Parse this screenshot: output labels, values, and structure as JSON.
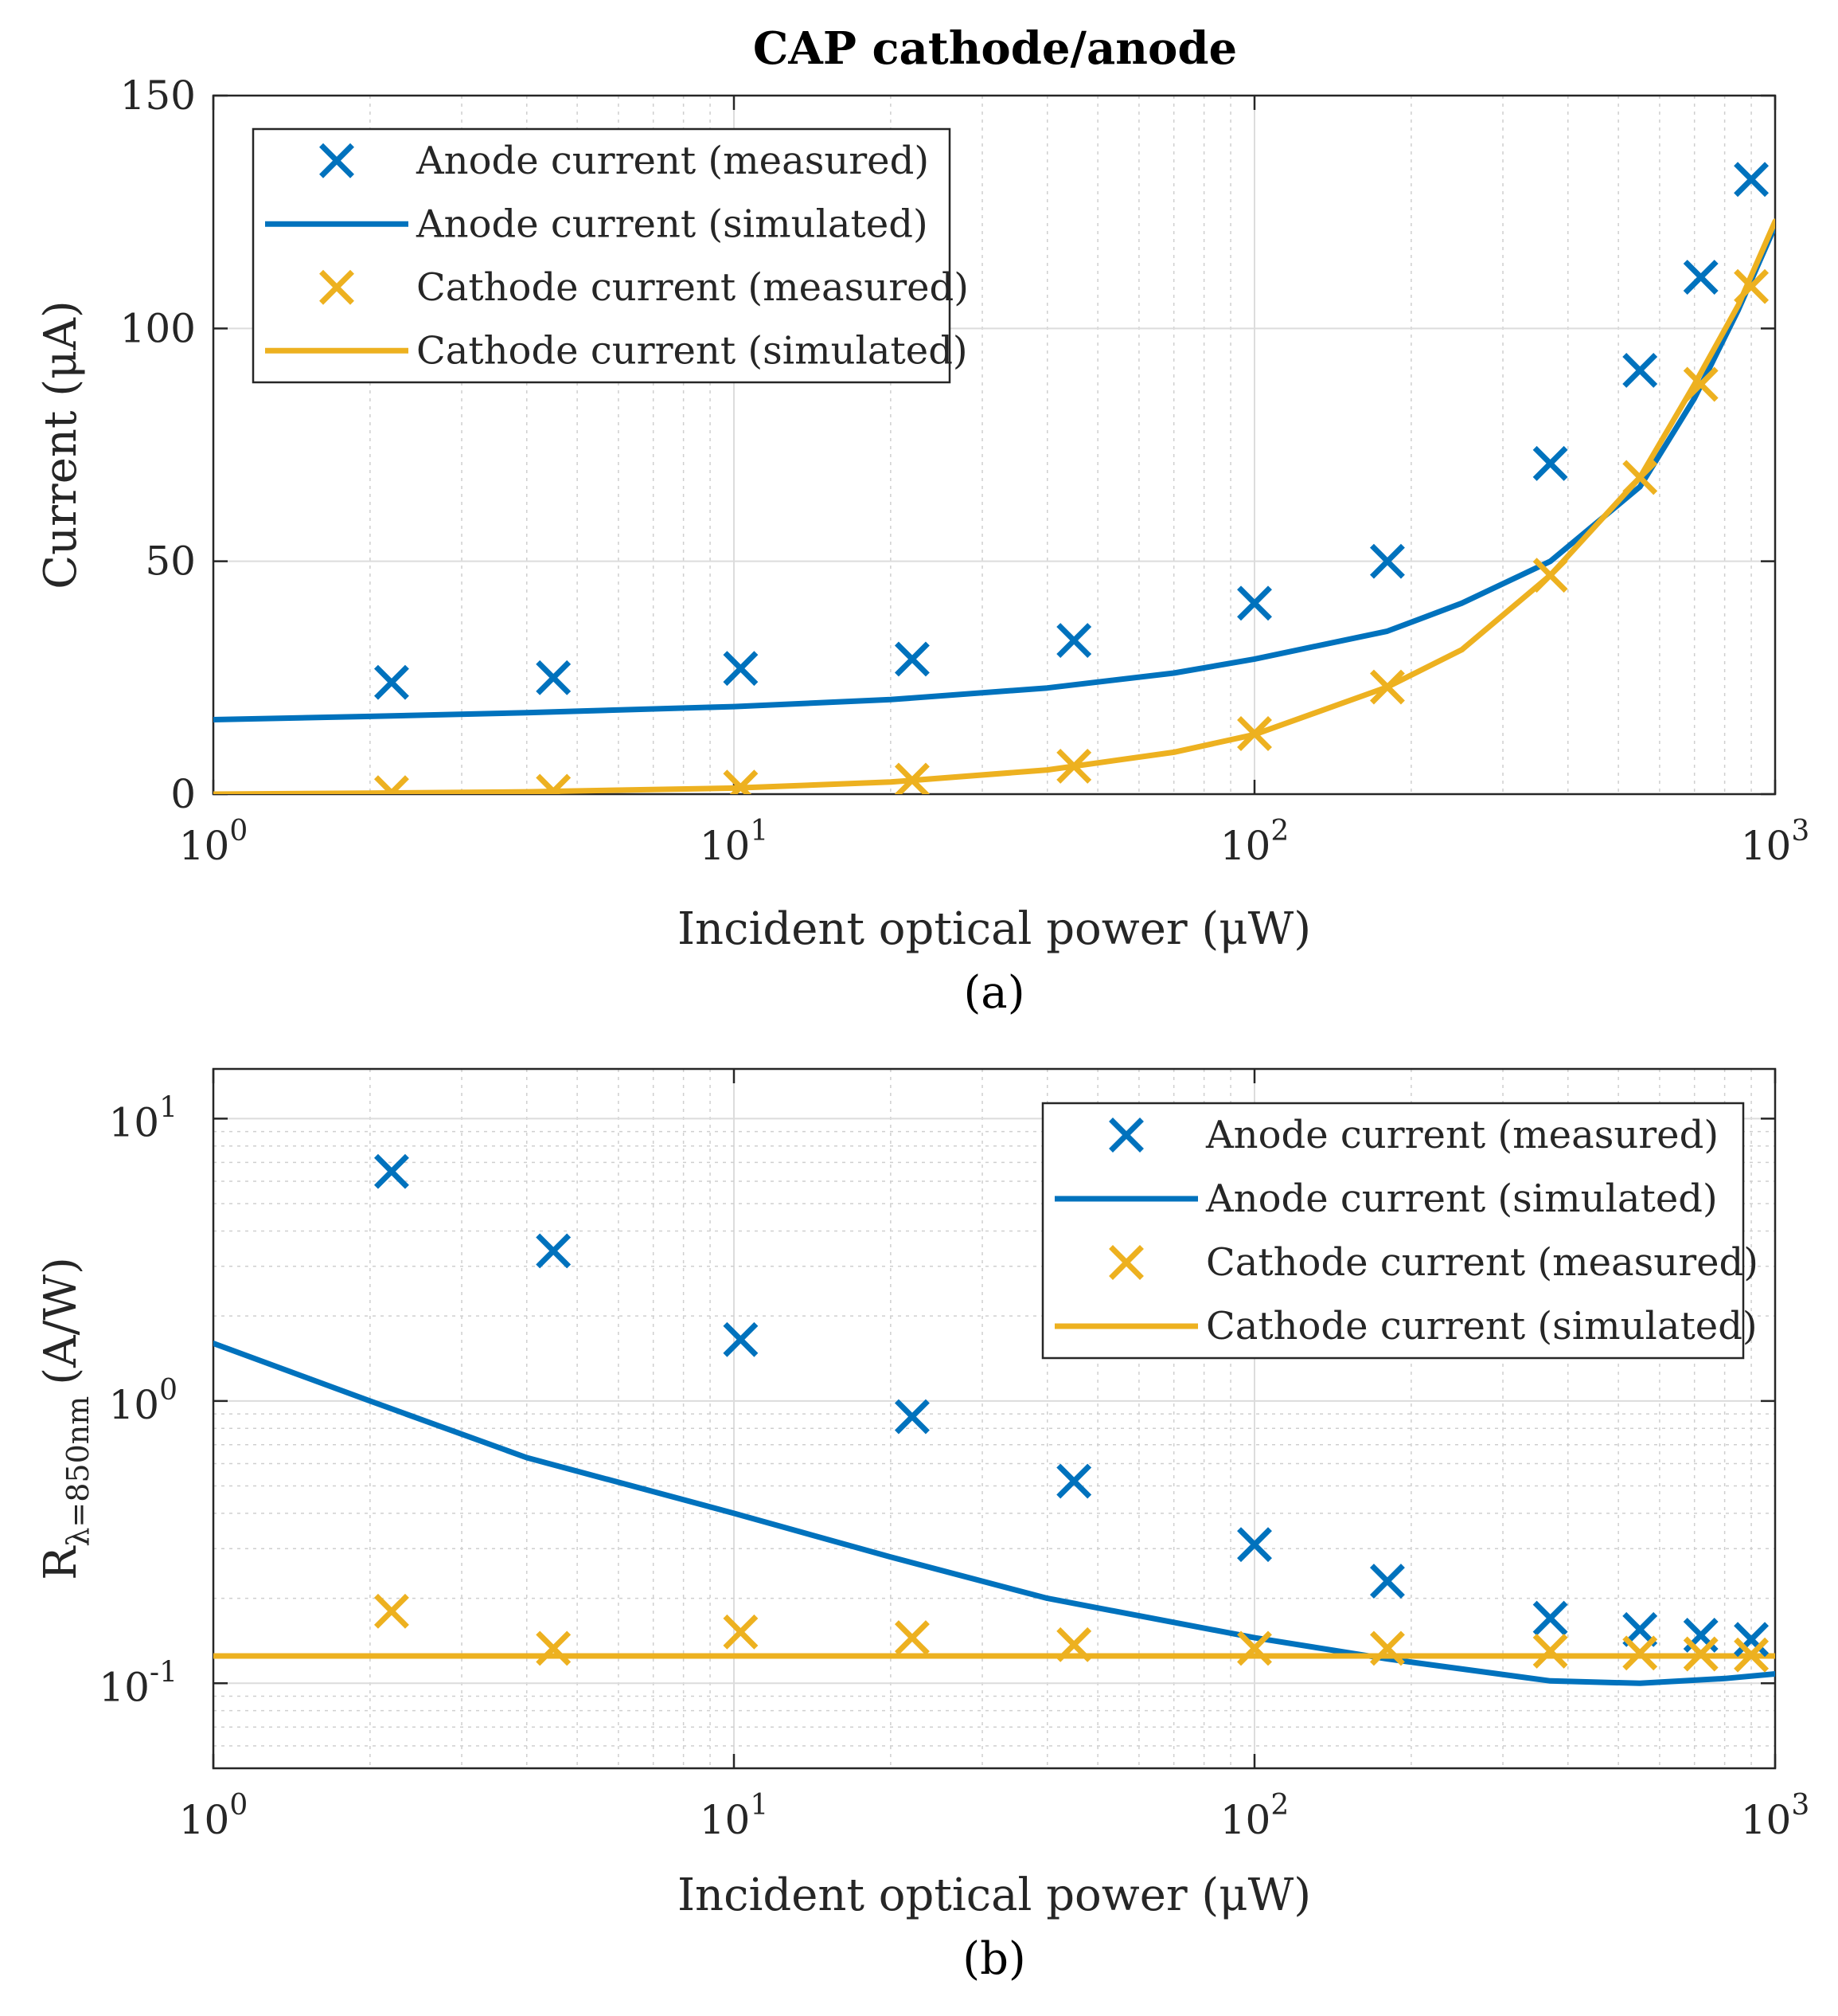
{
  "figure_title": "CAP cathode/anode",
  "colors": {
    "anode": "#0072BD",
    "cathode": "#EDB120"
  },
  "chart_data": [
    {
      "id": "a",
      "type": "line",
      "caption": "(a)",
      "xscale": "log",
      "yscale": "linear",
      "xlim": [
        1,
        1000
      ],
      "ylim": [
        0,
        150
      ],
      "xlabel": "Incident optical power (μW)",
      "ylabel": "Current (μA)",
      "xticks": [
        {
          "value": 1,
          "base": "10",
          "exp": "0"
        },
        {
          "value": 10,
          "base": "10",
          "exp": "1"
        },
        {
          "value": 100,
          "base": "10",
          "exp": "2"
        },
        {
          "value": 1000,
          "base": "10",
          "exp": "3"
        }
      ],
      "yticks": [
        {
          "value": 0,
          "label": "0"
        },
        {
          "value": 50,
          "label": "50"
        },
        {
          "value": 100,
          "label": "100"
        },
        {
          "value": 150,
          "label": "150"
        }
      ],
      "legend_position": "top-left",
      "series": [
        {
          "name": "Anode current (measured)",
          "style": "marker",
          "color_key": "anode",
          "x": [
            2.2,
            4.5,
            10.3,
            22,
            45,
            100,
            180,
            370,
            550,
            720,
            900
          ],
          "y": [
            24,
            25,
            27,
            29,
            33,
            41,
            50,
            71,
            91,
            111,
            132
          ]
        },
        {
          "name": "Anode current (simulated)",
          "style": "line",
          "color_key": "anode",
          "x": [
            1,
            2,
            4,
            10,
            20,
            40,
            70,
            100,
            180,
            250,
            370,
            550,
            700,
            850,
            1000
          ],
          "y": [
            16,
            16.7,
            17.5,
            18.8,
            20.3,
            22.8,
            26,
            29,
            35,
            41,
            50,
            66,
            85,
            104,
            122
          ]
        },
        {
          "name": "Cathode current (measured)",
          "style": "marker",
          "color_key": "cathode",
          "x": [
            2.2,
            4.5,
            10.3,
            22,
            45,
            100,
            180,
            370,
            550,
            720,
            900
          ],
          "y": [
            0.3,
            0.6,
            1.5,
            3,
            6,
            13,
            23,
            47,
            68,
            88,
            109
          ]
        },
        {
          "name": "Cathode current (simulated)",
          "style": "line",
          "color_key": "cathode",
          "x": [
            1,
            2,
            4,
            10,
            20,
            40,
            70,
            100,
            180,
            250,
            370,
            550,
            700,
            850,
            1000
          ],
          "y": [
            0,
            0.2,
            0.5,
            1.3,
            2.6,
            5.2,
            9,
            12.8,
            23,
            31,
            47,
            68,
            88,
            105,
            123
          ]
        }
      ]
    },
    {
      "id": "b",
      "type": "line",
      "caption": "(b)",
      "xscale": "log",
      "yscale": "log",
      "xlim": [
        1,
        1000
      ],
      "ylim": [
        0.05,
        15
      ],
      "xlabel": "Incident optical power (μW)",
      "ylabel_main": "R",
      "ylabel_sub": "λ=850nm",
      "ylabel_units": "(A/W)",
      "xticks": [
        {
          "value": 1,
          "base": "10",
          "exp": "0"
        },
        {
          "value": 10,
          "base": "10",
          "exp": "1"
        },
        {
          "value": 100,
          "base": "10",
          "exp": "2"
        },
        {
          "value": 1000,
          "base": "10",
          "exp": "3"
        }
      ],
      "yticks": [
        {
          "value": 0.1,
          "base": "10",
          "exp": "-1"
        },
        {
          "value": 1,
          "base": "10",
          "exp": "0"
        },
        {
          "value": 10,
          "base": "10",
          "exp": "1"
        }
      ],
      "legend_position": "top-right",
      "series": [
        {
          "name": "Anode current (measured)",
          "style": "marker",
          "color_key": "anode",
          "x": [
            2.2,
            4.5,
            10.3,
            22,
            45,
            100,
            180,
            370,
            550,
            720,
            900
          ],
          "y": [
            6.5,
            3.4,
            1.65,
            0.88,
            0.52,
            0.31,
            0.23,
            0.17,
            0.155,
            0.148,
            0.143
          ]
        },
        {
          "name": "Anode current (simulated)",
          "style": "line",
          "color_key": "anode",
          "x": [
            1,
            2,
            4,
            10,
            20,
            40,
            100,
            180,
            370,
            550,
            800,
            1000
          ],
          "y": [
            1.6,
            1.0,
            0.63,
            0.4,
            0.28,
            0.2,
            0.145,
            0.122,
            0.102,
            0.1,
            0.104,
            0.108
          ]
        },
        {
          "name": "Cathode current (measured)",
          "style": "marker",
          "color_key": "cathode",
          "x": [
            2.2,
            4.5,
            10.3,
            22,
            45,
            100,
            180,
            370,
            550,
            720,
            900
          ],
          "y": [
            0.18,
            0.133,
            0.152,
            0.145,
            0.137,
            0.133,
            0.133,
            0.13,
            0.128,
            0.127,
            0.126
          ]
        },
        {
          "name": "Cathode current (simulated)",
          "style": "line",
          "color_key": "cathode",
          "x": [
            1,
            1000
          ],
          "y": [
            0.125,
            0.125
          ]
        }
      ]
    }
  ]
}
